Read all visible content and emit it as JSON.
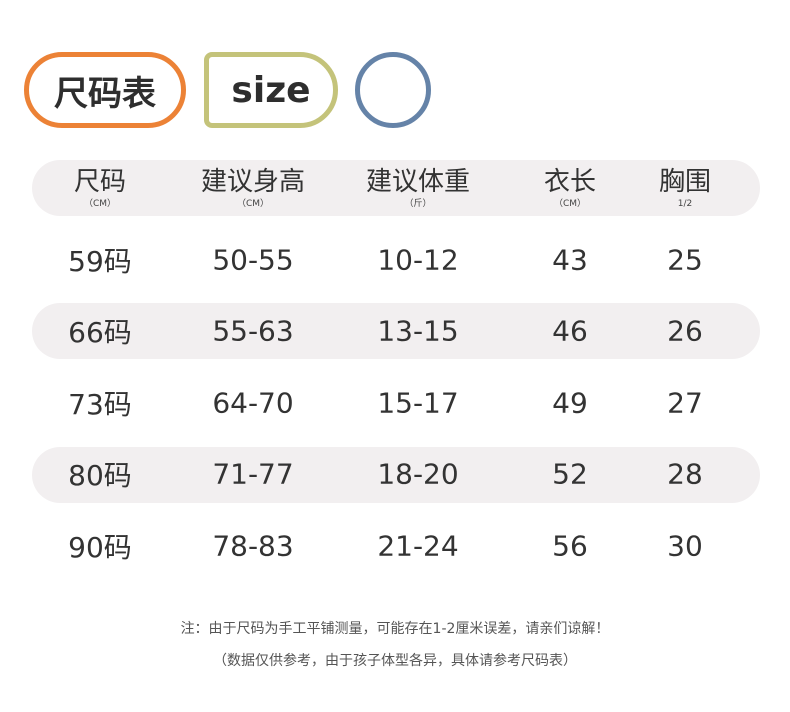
{
  "badges": {
    "title": "尺码表",
    "size": "size"
  },
  "colors": {
    "orange": "#ec8236",
    "olive": "#c4c37a",
    "blue": "#6583a8",
    "band": "#f2eff0"
  },
  "headers": [
    {
      "label": "尺码",
      "unit": "（CM）"
    },
    {
      "label": "建议身高",
      "unit": "（CM）"
    },
    {
      "label": "建议体重",
      "unit": "（斤）"
    },
    {
      "label": "衣长",
      "unit": "（CM）"
    },
    {
      "label": "胸围",
      "unit": "1/2"
    }
  ],
  "rows": [
    [
      "59码",
      "50-55",
      "10-12",
      "43",
      "25"
    ],
    [
      "66码",
      "55-63",
      "13-15",
      "46",
      "26"
    ],
    [
      "73码",
      "64-70",
      "15-17",
      "49",
      "27"
    ],
    [
      "80码",
      "71-77",
      "18-20",
      "52",
      "28"
    ],
    [
      "90码",
      "78-83",
      "21-24",
      "56",
      "30"
    ]
  ],
  "notes": {
    "line1": "注：由于尺码为手工平铺测量，可能存在1-2厘米误差，请亲们谅解！",
    "line2": "（数据仅供参考，由于孩子体型各异，具体请参考尺码表）"
  }
}
